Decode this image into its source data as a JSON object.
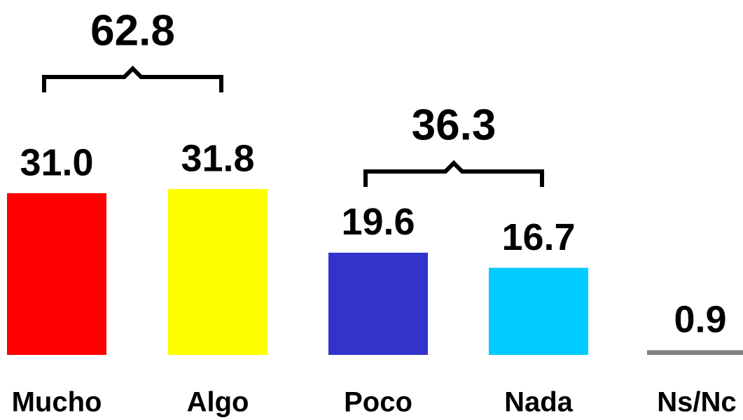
{
  "chart_data": {
    "type": "bar",
    "categories": [
      "Mucho",
      "Algo",
      "Poco",
      "Nada",
      "Ns/Nc"
    ],
    "values": [
      31.0,
      31.8,
      19.6,
      16.7,
      0.9
    ],
    "value_labels": [
      "31.0",
      "31.8",
      "19.6",
      "16.7",
      "0.9"
    ],
    "colors": [
      "#ff0000",
      "#ffff00",
      "#3333cc",
      "#00ccff",
      "#808080"
    ],
    "annotations": [
      {
        "value": 62.8,
        "categories": [
          "Mucho",
          "Algo"
        ]
      },
      {
        "value": 36.3,
        "categories": [
          "Poco",
          "Nada"
        ]
      }
    ]
  }
}
